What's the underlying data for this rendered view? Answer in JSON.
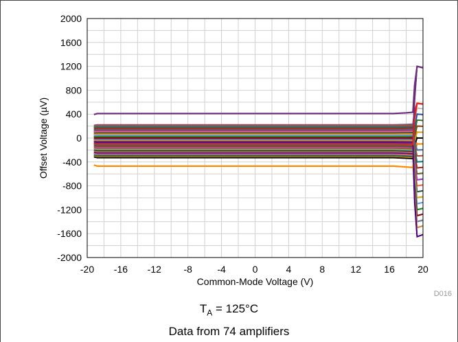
{
  "chart_data": {
    "type": "line",
    "xlabel": "Common-Mode Voltage (V)",
    "ylabel": "Offset Voltage (µV)",
    "xlim": [
      -20,
      20
    ],
    "ylim": [
      -2000,
      2000
    ],
    "xticks": [
      -20,
      -16,
      -12,
      -8,
      -4,
      0,
      4,
      8,
      12,
      16,
      20
    ],
    "yticks": [
      2000,
      1600,
      1200,
      800,
      400,
      0,
      -400,
      -800,
      -1200,
      -1600,
      -2000
    ],
    "grid": true,
    "figure_code": "D016",
    "condition_main": "T",
    "condition_sub": "A",
    "condition_value": " = 125°C",
    "note": "Data from 74 amplifiers",
    "num_series": 74,
    "series_flat_levels_uV": [
      410,
      220,
      205,
      195,
      185,
      175,
      160,
      150,
      140,
      130,
      120,
      110,
      100,
      90,
      80,
      70,
      60,
      50,
      40,
      30,
      20,
      10,
      0,
      -10,
      -20,
      -30,
      -40,
      -50,
      -60,
      -70,
      -80,
      -90,
      -100,
      -110,
      -120,
      -130,
      -140,
      -150,
      -160,
      -170,
      -180,
      -190,
      -200,
      -210,
      -220,
      -230,
      -240,
      -250,
      -260,
      -270,
      -280,
      -290,
      -300,
      -310,
      -320,
      -330,
      -470,
      215,
      200,
      180,
      165,
      145,
      125,
      105,
      85,
      65,
      45,
      25,
      5,
      -25,
      -45,
      -65,
      -85,
      -105
    ],
    "series_end_values_uV": [
      1200,
      580,
      500,
      400,
      300,
      200,
      100,
      0,
      -100,
      -200,
      -300,
      -400,
      -500,
      -600,
      -700,
      -800,
      -900,
      -1000,
      -1100,
      -1200,
      -1300,
      -1400,
      -1500,
      -1650
    ]
  }
}
